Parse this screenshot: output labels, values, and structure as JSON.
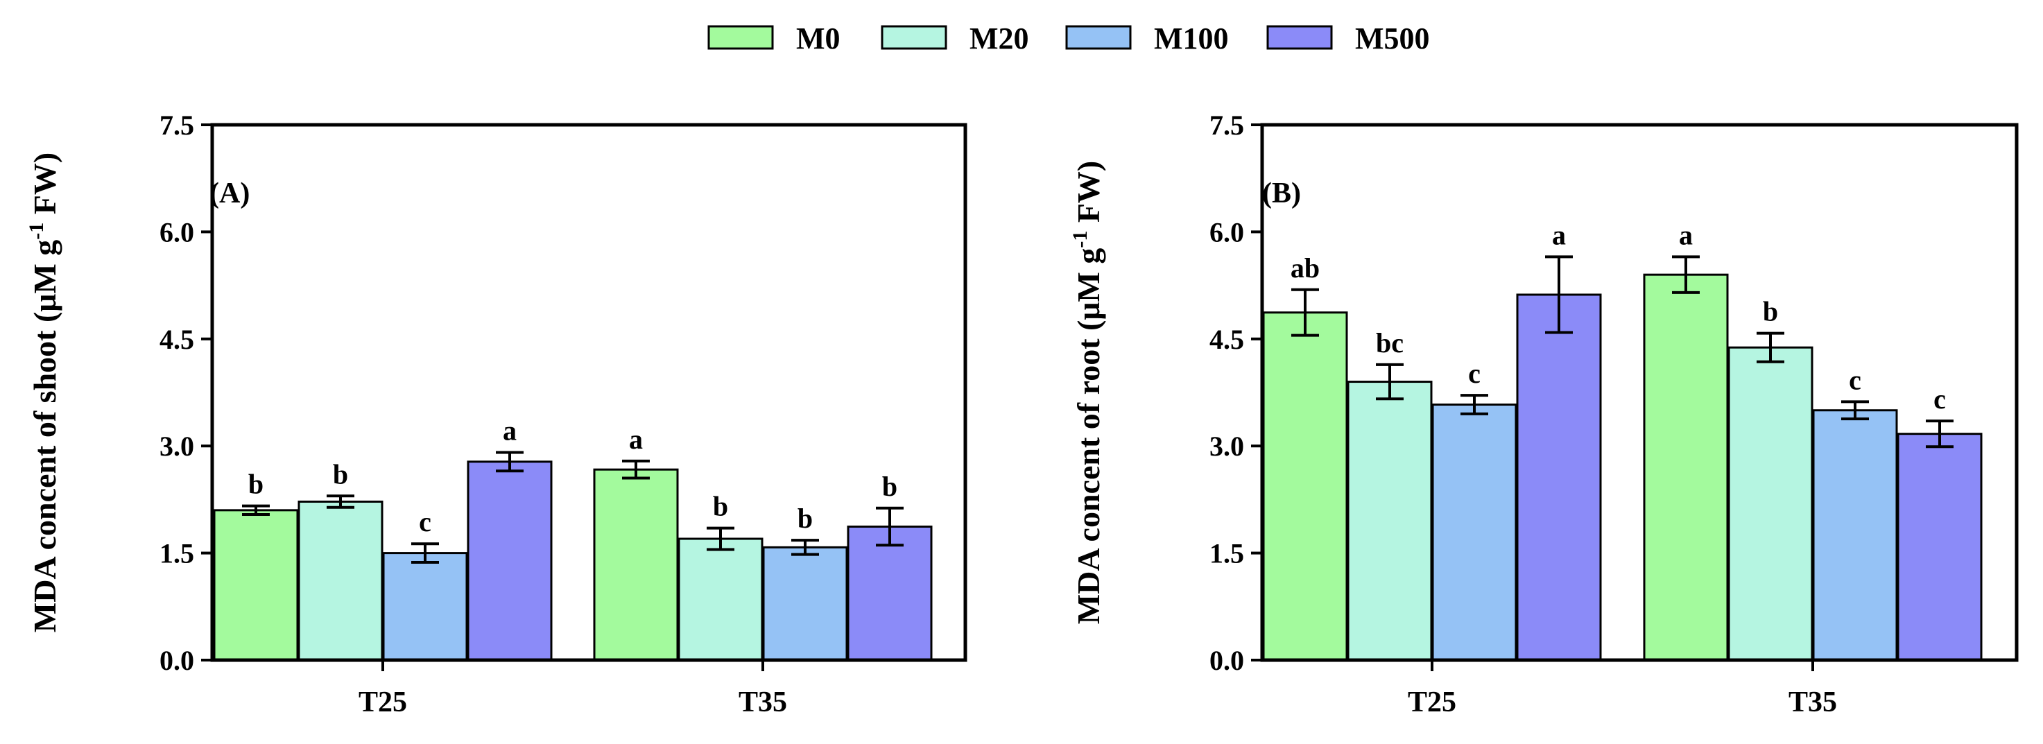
{
  "legend": {
    "items": [
      {
        "label": "M0",
        "color": "#a3fa9d"
      },
      {
        "label": "M20",
        "color": "#b5f5e1"
      },
      {
        "label": "M100",
        "color": "#95c2f5"
      },
      {
        "label": "M500",
        "color": "#8b8bf8"
      }
    ]
  },
  "chart_data": [
    {
      "type": "bar",
      "panel_label": "(A)",
      "ylabel": "MDA concent of shoot (μM g",
      "ylabel_sup": "-1",
      "ylabel_end": " FW)",
      "ylim": [
        0,
        7.5
      ],
      "yticks": [
        "0.0",
        "1.5",
        "3.0",
        "4.5",
        "6.0",
        "7.5"
      ],
      "categories": [
        "T25",
        "T35"
      ],
      "series": [
        {
          "name": "M0",
          "color": "#a3fa9d",
          "values": [
            2.1,
            2.67
          ],
          "errors": [
            0.06,
            0.12
          ],
          "letters": [
            "b",
            "a"
          ]
        },
        {
          "name": "M20",
          "color": "#b5f5e1",
          "values": [
            2.22,
            1.7
          ],
          "errors": [
            0.08,
            0.15
          ],
          "letters": [
            "b",
            "b"
          ]
        },
        {
          "name": "M100",
          "color": "#95c2f5",
          "values": [
            1.5,
            1.58
          ],
          "errors": [
            0.13,
            0.1
          ],
          "letters": [
            "c",
            "b"
          ]
        },
        {
          "name": "M500",
          "color": "#8b8bf8",
          "values": [
            2.78,
            1.87
          ],
          "errors": [
            0.13,
            0.26
          ],
          "letters": [
            "a",
            "b"
          ]
        }
      ]
    },
    {
      "type": "bar",
      "panel_label": "(B)",
      "ylabel": "MDA concent of root (μM g",
      "ylabel_sup": "-1",
      "ylabel_end": " FW)",
      "ylim": [
        0,
        7.5
      ],
      "yticks": [
        "0.0",
        "1.5",
        "3.0",
        "4.5",
        "6.0",
        "7.5"
      ],
      "categories": [
        "T25",
        "T35"
      ],
      "series": [
        {
          "name": "M0",
          "color": "#a3fa9d",
          "values": [
            4.87,
            5.4
          ],
          "errors": [
            0.32,
            0.25
          ],
          "letters": [
            "ab",
            "a"
          ]
        },
        {
          "name": "M20",
          "color": "#b5f5e1",
          "values": [
            3.9,
            4.38
          ],
          "errors": [
            0.24,
            0.2
          ],
          "letters": [
            "bc",
            "b"
          ]
        },
        {
          "name": "M100",
          "color": "#95c2f5",
          "values": [
            3.58,
            3.5
          ],
          "errors": [
            0.13,
            0.12
          ],
          "letters": [
            "c",
            "c"
          ]
        },
        {
          "name": "M500",
          "color": "#8b8bf8",
          "values": [
            5.12,
            3.17
          ],
          "errors": [
            0.53,
            0.18
          ],
          "letters": [
            "a",
            "c"
          ]
        }
      ]
    }
  ]
}
